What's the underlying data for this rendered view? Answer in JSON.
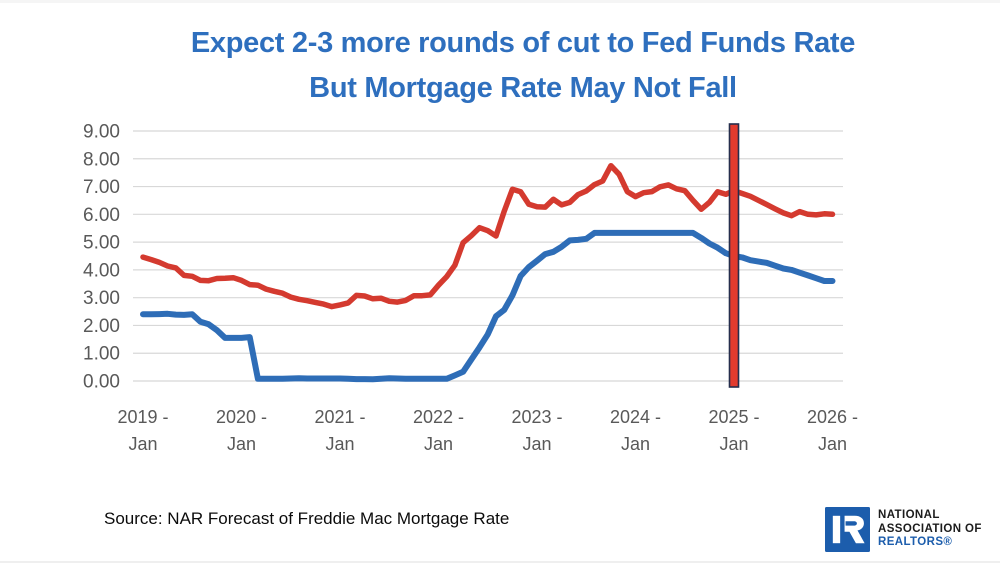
{
  "title": {
    "line1": "Expect 2-3 more rounds of cut to Fed Funds Rate",
    "line2": "But Mortgage Rate May Not Fall"
  },
  "source": {
    "label": "Source: NAR Forecast of Freddie Mac Mortgage Rate"
  },
  "logo": {
    "line1": "NATIONAL",
    "line2": "ASSOCIATION OF",
    "line3": "REALTORS®",
    "block_r_icon": "nar-block-r-icon"
  },
  "colors": {
    "title_text": "#2e6fbe",
    "mortgage_line": "#d43a2f",
    "fed_funds_line": "#2e6db7",
    "marker_fill": "#e23b2e",
    "marker_border": "#252e4d",
    "grid": "#d8d8d8",
    "axis_text": "#595959",
    "source_text": "#0b0b0b",
    "logo_blue": "#1c5dac",
    "logo_dark": "#1c1c1c"
  },
  "chart_data": {
    "type": "line",
    "title": "Expect 2-3 more rounds of cut to Fed Funds Rate But Mortgage Rate May Not Fall",
    "xlabel": "",
    "ylabel": "",
    "ylim": [
      0,
      9
    ],
    "y_tick_labels": [
      "9.00",
      "8.00",
      "7.00",
      "6.00",
      "5.00",
      "4.00",
      "3.00",
      "2.00",
      "1.00",
      "0.00"
    ],
    "x_tick_labels": [
      [
        "2019 -",
        "Jan"
      ],
      [
        "2020 -",
        "Jan"
      ],
      [
        "2021 -",
        "Jan"
      ],
      [
        "2022 -",
        "Jan"
      ],
      [
        "2023 -",
        "Jan"
      ],
      [
        "2024 -",
        "Jan"
      ],
      [
        "2025 -",
        "Jan"
      ],
      [
        "2026 -",
        "Jan"
      ]
    ],
    "x_unit": "month",
    "x_range": "2019-01 through 2026-01, monthly, 85 points",
    "grid": "horizontal only",
    "legend": "none",
    "forecast_marker": {
      "x": "2025-01",
      "month_index": 72,
      "style": "red vertical bar, dark navy outline, full plot height"
    },
    "series": [
      {
        "name": "Freddie Mac Mortgage Rate (history + NAR forecast)",
        "color_key": "mortgage_line",
        "values": [
          4.46,
          4.37,
          4.27,
          4.14,
          4.07,
          3.8,
          3.77,
          3.62,
          3.61,
          3.69,
          3.7,
          3.72,
          3.62,
          3.47,
          3.45,
          3.31,
          3.23,
          3.16,
          3.02,
          2.94,
          2.89,
          2.83,
          2.77,
          2.68,
          2.74,
          2.81,
          3.08,
          3.06,
          2.96,
          2.98,
          2.87,
          2.84,
          2.9,
          3.07,
          3.07,
          3.1,
          3.45,
          3.76,
          4.17,
          4.98,
          5.23,
          5.52,
          5.41,
          5.22,
          6.11,
          6.9,
          6.81,
          6.36,
          6.27,
          6.26,
          6.54,
          6.34,
          6.43,
          6.71,
          6.84,
          7.07,
          7.2,
          7.75,
          7.44,
          6.82,
          6.64,
          6.78,
          6.82,
          6.99,
          7.06,
          6.92,
          6.85,
          6.5,
          6.18,
          6.43,
          6.81,
          6.72,
          6.85,
          6.75,
          6.65,
          6.5,
          6.35,
          6.2,
          6.05,
          5.95,
          6.1,
          6.0,
          5.98,
          6.02,
          6.0
        ]
      },
      {
        "name": "Fed Funds Rate (history + NAR forecast)",
        "color_key": "fed_funds_line",
        "values": [
          2.4,
          2.4,
          2.41,
          2.42,
          2.39,
          2.38,
          2.4,
          2.13,
          2.04,
          1.83,
          1.55,
          1.55,
          1.55,
          1.58,
          0.08,
          0.08,
          0.08,
          0.08,
          0.09,
          0.1,
          0.09,
          0.09,
          0.09,
          0.09,
          0.09,
          0.08,
          0.07,
          0.07,
          0.06,
          0.08,
          0.1,
          0.09,
          0.08,
          0.08,
          0.08,
          0.08,
          0.08,
          0.08,
          0.2,
          0.33,
          0.77,
          1.21,
          1.68,
          2.33,
          2.56,
          3.08,
          3.78,
          4.1,
          4.33,
          4.57,
          4.65,
          4.83,
          5.06,
          5.08,
          5.12,
          5.33,
          5.33,
          5.33,
          5.33,
          5.33,
          5.33,
          5.33,
          5.33,
          5.33,
          5.33,
          5.33,
          5.33,
          5.33,
          5.15,
          4.95,
          4.8,
          4.6,
          4.5,
          4.45,
          4.35,
          4.3,
          4.25,
          4.15,
          4.05,
          4.0,
          3.9,
          3.8,
          3.7,
          3.6,
          3.6
        ]
      }
    ]
  }
}
